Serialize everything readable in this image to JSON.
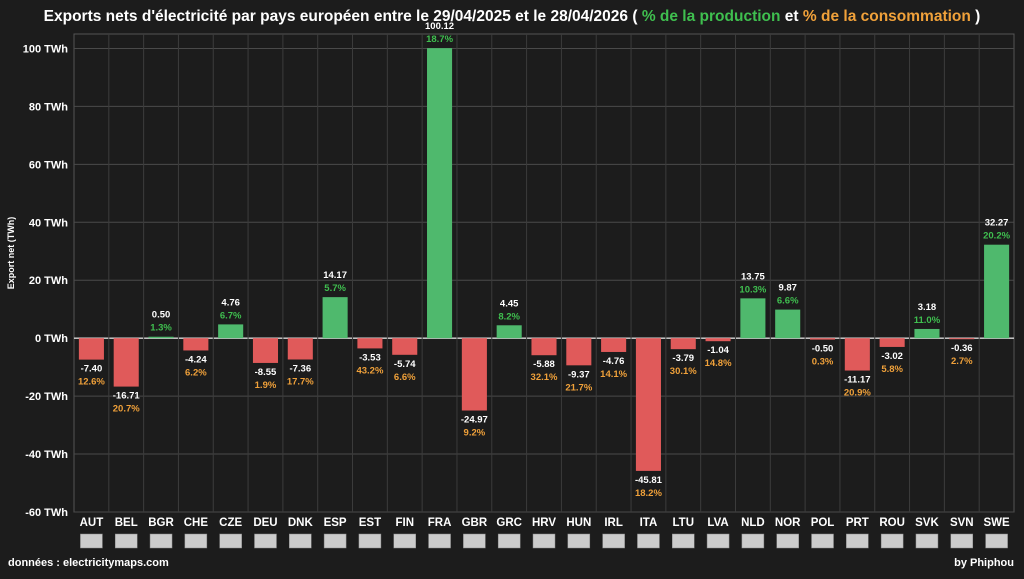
{
  "title": {
    "main": "Exports nets d'électricité par pays européen entre le 29/04/2025 et le 28/04/2026 (",
    "production_label": "% de la production",
    "connector": "et",
    "consumption_label": "% de la consommation",
    "close": ")"
  },
  "footer": {
    "source": "données : electricitymaps.com",
    "author": "by Phiphou"
  },
  "colors": {
    "background": "#1c1c1c",
    "positive_bar": "#4fb96d",
    "negative_bar": "#e05a5a",
    "production_text": "#3fbf4f",
    "consumption_text": "#f0a13a"
  },
  "chart_data": {
    "type": "bar",
    "ylabel": "Export net (TWh)",
    "ylim": [
      -60,
      105
    ],
    "yticks": [
      100,
      80,
      60,
      40,
      20,
      0,
      -20,
      -40,
      -60
    ],
    "ytick_labels": [
      "100 TWh",
      "80 TWh",
      "60 TWh",
      "40 TWh",
      "20 TWh",
      "0 TWh",
      "-20 TWh",
      "-40 TWh",
      "-60 TWh"
    ],
    "grid": true,
    "categories": [
      "AUT",
      "BEL",
      "BGR",
      "CHE",
      "CZE",
      "DEU",
      "DNK",
      "ESP",
      "EST",
      "FIN",
      "FRA",
      "GBR",
      "GRC",
      "HRV",
      "HUN",
      "IRL",
      "ITA",
      "LTU",
      "LVA",
      "NLD",
      "NOR",
      "POL",
      "PRT",
      "ROU",
      "SVK",
      "SVN",
      "SWE"
    ],
    "values": [
      -7.4,
      -16.71,
      0.5,
      -4.24,
      4.76,
      -8.55,
      -7.36,
      14.17,
      -3.53,
      -5.74,
      100.12,
      -24.97,
      4.45,
      -5.88,
      -9.37,
      -4.76,
      -45.81,
      -3.79,
      -1.04,
      13.75,
      9.87,
      -0.5,
      -11.17,
      -3.02,
      3.18,
      -0.36,
      32.27
    ],
    "value_labels": [
      "-7.40",
      "-16.71",
      "0.50",
      "-4.24",
      "4.76",
      "-8.55",
      "-7.36",
      "14.17",
      "-3.53",
      "-5.74",
      "100.12",
      "-24.97",
      "4.45",
      "-5.88",
      "-9.37",
      "-4.76",
      "-45.81",
      "-3.79",
      "-1.04",
      "13.75",
      "9.87",
      "-0.50",
      "-11.17",
      "-3.02",
      "3.18",
      "-0.36",
      "32.27"
    ],
    "percent_labels": [
      "12.6%",
      "20.7%",
      "1.3%",
      "6.2%",
      "6.7%",
      "1.9%",
      "17.7%",
      "5.7%",
      "43.2%",
      "6.6%",
      "18.7%",
      "9.2%",
      "8.2%",
      "32.1%",
      "21.7%",
      "14.1%",
      "18.2%",
      "30.1%",
      "14.8%",
      "10.3%",
      "6.6%",
      "0.3%",
      "20.9%",
      "5.8%",
      "11.0%",
      "2.7%",
      "20.2%"
    ]
  }
}
